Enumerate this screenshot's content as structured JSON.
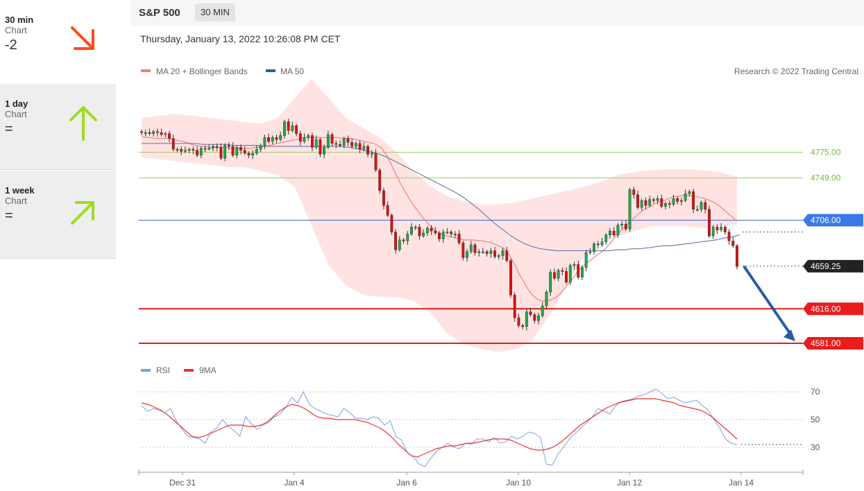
{
  "signals": [
    {
      "timeframe": "30 min",
      "kind": "Chart",
      "value": "-2",
      "icon": "arrow-down-right-icon",
      "color": "#ff4a1c"
    },
    {
      "timeframe": "1 day",
      "kind": "Chart",
      "value": "=",
      "icon": "arrow-up-icon",
      "color": "#9ddc1f"
    },
    {
      "timeframe": "1 week",
      "kind": "Chart",
      "value": "=",
      "icon": "arrow-up-right-icon",
      "color": "#9ddc1f"
    }
  ],
  "header": {
    "symbol": "S&P 500",
    "timeframe_button": "30 MIN"
  },
  "datetime": "Thursday, January 13, 2022 10:26:08 PM CET",
  "legend": {
    "ma20": "MA 20 + Bollinger Bands",
    "ma50": "MA 50",
    "copyright": "Research © 2022 Trading Central"
  },
  "rsi_legend": {
    "rsi": "RSI",
    "ma9": "9MA"
  },
  "colors": {
    "up": "#22aa44",
    "down": "#dd1111",
    "ma20": "#f07f7f",
    "ma50": "#6f7fa8",
    "band": "#ffd9d9",
    "rsi": "#7aa0e8",
    "rsi_ma": "#ee3333",
    "pivot": "#3366cc",
    "support": "#e51a1a",
    "resistance": "#9bd060",
    "forecast_arrow": "#2b5aa0"
  },
  "chart_data": {
    "type": "candlestick",
    "title": "S&P 500",
    "timeframe": "30 MIN",
    "x_ticks": [
      "Dec 31",
      "Jan 4",
      "Jan 6",
      "Jan 10",
      "Jan 12",
      "Jan 14"
    ],
    "price_range": [
      4569,
      4824
    ],
    "levels": [
      {
        "value": "4775.00",
        "kind": "resistance"
      },
      {
        "value": "4749.00",
        "kind": "resistance"
      },
      {
        "value": "4706.00",
        "kind": "pivot"
      },
      {
        "value": "4659.25",
        "kind": "last"
      },
      {
        "value": "4616.00",
        "kind": "support"
      },
      {
        "value": "4581.00",
        "kind": "support"
      }
    ],
    "closes": [
      4795,
      4795,
      4794,
      4796,
      4795,
      4793,
      4794,
      4789,
      4778,
      4778,
      4776,
      4777,
      4778,
      4777,
      4772,
      4779,
      4779,
      4779,
      4781,
      4780,
      4769,
      4782,
      4781,
      4772,
      4780,
      4777,
      4774,
      4772,
      4774,
      4778,
      4782,
      4790,
      4786,
      4790,
      4788,
      4792,
      4806,
      4797,
      4802,
      4794,
      4786,
      4790,
      4792,
      4780,
      4788,
      4773,
      4780,
      4793,
      4784,
      4783,
      4782,
      4789,
      4785,
      4781,
      4784,
      4778,
      4781,
      4773,
      4774,
      4757,
      4736,
      4721,
      4711,
      4694,
      4676,
      4686,
      4685,
      4692,
      4699,
      4699,
      4690,
      4693,
      4698,
      4695,
      4693,
      4687,
      4694,
      4694,
      4692,
      4692,
      4683,
      4668,
      4674,
      4681,
      4673,
      4674,
      4674,
      4672,
      4675,
      4669,
      4670,
      4675,
      4665,
      4630,
      4607,
      4599,
      4598,
      4613,
      4610,
      4604,
      4609,
      4619,
      4633,
      4653,
      4647,
      4655,
      4654,
      4643,
      4660,
      4661,
      4648,
      4658,
      4673,
      4674,
      4682,
      4681,
      4684,
      4691,
      4695,
      4691,
      4701,
      4702,
      4697,
      4737,
      4732,
      4719,
      4726,
      4721,
      4727,
      4726,
      4728,
      4720,
      4723,
      4722,
      4728,
      4725,
      4726,
      4733,
      4735,
      4717,
      4717,
      4724,
      4717,
      4690,
      4699,
      4696,
      4699,
      4694,
      4685,
      4680,
      4659
    ],
    "ma20": [
      4791,
      4790,
      4790,
      4789,
      4789,
      4789,
      4789,
      4788,
      4787,
      4786,
      4785,
      4783,
      4782,
      4781,
      4781,
      4780,
      4780,
      4780,
      4780,
      4780,
      4779,
      4779,
      4779,
      4779,
      4779,
      4780,
      4780,
      4781,
      4782,
      4783,
      4784,
      4785,
      4786,
      4787,
      4788,
      4789,
      4790,
      4790,
      4790,
      4790,
      4790,
      4790,
      4790,
      4790,
      4789,
      4789,
      4789,
      4788,
      4787,
      4786,
      4785,
      4784,
      4782,
      4778,
      4771,
      4762,
      4752,
      4743,
      4735,
      4727,
      4720,
      4714,
      4708,
      4703,
      4698,
      4694,
      4692,
      4690,
      4689,
      4688,
      4687,
      4686,
      4686,
      4686,
      4685,
      4685,
      4684,
      4683,
      4681,
      4679,
      4676,
      4670,
      4662,
      4652,
      4644,
      4636,
      4630,
      4626,
      4624,
      4624,
      4625,
      4627,
      4631,
      4636,
      4642,
      4648,
      4654,
      4659,
      4663,
      4666,
      4670,
      4673,
      4677,
      4682,
      4688,
      4693,
      4698,
      4703,
      4707,
      4711,
      4715,
      4718,
      4720,
      4723,
      4725,
      4726,
      4728,
      4730,
      4730,
      4731,
      4731,
      4731,
      4730,
      4729,
      4728,
      4726,
      4724,
      4721,
      4717,
      4713,
      4709,
      4705
    ],
    "ma50": [
      4784,
      4784,
      4784,
      4784,
      4784,
      4784,
      4784,
      4784,
      4783,
      4783,
      4783,
      4783,
      4782,
      4782,
      4782,
      4782,
      4781,
      4781,
      4781,
      4781,
      4781,
      4781,
      4781,
      4781,
      4781,
      4781,
      4781,
      4780,
      4779,
      4777,
      4775,
      4773,
      4770,
      4766,
      4762,
      4758,
      4754,
      4750,
      4746,
      4742,
      4738,
      4734,
      4729,
      4723,
      4717,
      4710,
      4703,
      4697,
      4691,
      4686,
      4682,
      4679,
      4677,
      4676,
      4675,
      4675,
      4675,
      4675,
      4675,
      4675,
      4675,
      4675,
      4676,
      4676,
      4677,
      4677,
      4678,
      4679,
      4680,
      4680,
      4681,
      4682,
      4683,
      4684,
      4685,
      4686,
      4688,
      4689,
      4691
    ],
    "bb_upper": [
      4810,
      4812,
      4814,
      4812,
      4810,
      4808,
      4806,
      4804,
      4810,
      4830,
      4850,
      4830,
      4810,
      4800,
      4790,
      4775,
      4755,
      4740,
      4730,
      4725,
      4722,
      4722,
      4724,
      4728,
      4732,
      4736,
      4740,
      4745,
      4752,
      4755,
      4757,
      4758,
      4758,
      4757,
      4755,
      4750
    ],
    "bb_lower": [
      4770,
      4768,
      4766,
      4764,
      4762,
      4760,
      4760,
      4756,
      4752,
      4740,
      4700,
      4660,
      4640,
      4630,
      4628,
      4628,
      4624,
      4612,
      4590,
      4580,
      4575,
      4572,
      4575,
      4585,
      4610,
      4640,
      4670,
      4685,
      4690,
      4695,
      4700,
      4700,
      4700,
      4698,
      4700,
      4702
    ],
    "rsi": [
      60,
      56,
      58,
      57,
      55,
      58,
      49,
      43,
      38,
      37,
      36,
      33,
      41,
      44,
      50,
      45,
      42,
      38,
      52,
      47,
      43,
      46,
      48,
      52,
      54,
      59,
      66,
      62,
      70,
      61,
      58,
      56,
      54,
      53,
      52,
      58,
      55,
      51,
      51,
      50,
      52,
      51,
      46,
      49,
      38,
      35,
      26,
      23,
      18,
      16,
      22,
      27,
      30,
      33,
      30,
      29,
      33,
      32,
      36,
      36,
      34,
      37,
      33,
      34,
      38,
      36,
      38,
      41,
      40,
      37,
      18,
      17,
      25,
      30,
      36,
      40,
      44,
      48,
      52,
      58,
      56,
      54,
      60,
      63,
      64,
      65,
      67,
      68,
      70,
      72,
      69,
      65,
      66,
      64,
      62,
      63,
      64,
      60,
      57,
      50,
      44,
      36,
      33,
      32
    ],
    "rsi_ma": [
      62,
      61,
      59,
      57,
      54,
      50,
      46,
      42,
      38,
      37,
      38,
      40,
      42,
      44,
      46,
      46,
      46,
      45,
      45,
      46,
      48,
      52,
      56,
      59,
      61,
      60,
      58,
      55,
      52,
      51,
      51,
      50,
      50,
      50,
      50,
      49,
      48,
      46,
      44,
      41,
      37,
      32,
      28,
      24,
      23,
      25,
      27,
      29,
      30,
      31,
      31,
      32,
      33,
      33,
      34,
      35,
      36,
      36,
      36,
      35,
      33,
      31,
      29,
      28,
      28,
      29,
      31,
      34,
      38,
      42,
      46,
      49,
      52,
      55,
      58,
      60,
      62,
      63,
      64,
      65,
      65,
      65,
      65,
      64,
      63,
      62,
      60,
      59,
      58,
      57,
      55,
      52,
      48,
      44,
      40,
      36
    ],
    "rsi_ticks": [
      70,
      50,
      30
    ],
    "rsi_range": [
      15,
      75
    ]
  }
}
